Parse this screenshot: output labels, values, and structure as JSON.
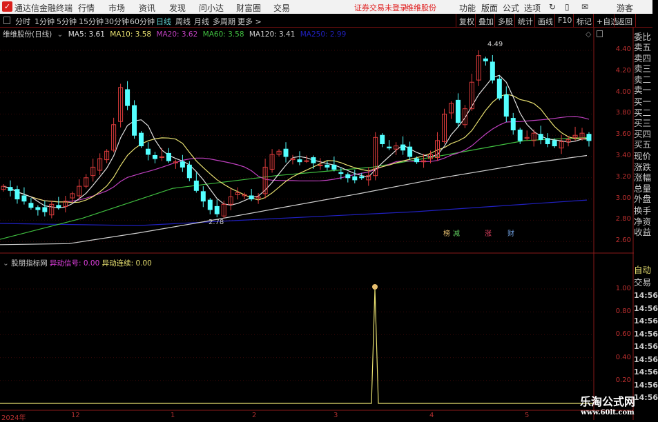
{
  "app": {
    "title": "通达信金融终端",
    "menu": [
      "行情",
      "市场",
      "资讯",
      "发现",
      "问小达",
      "财富圈",
      "交易"
    ],
    "status": "证券交易未登录",
    "stock_name": "维维股份",
    "right_menu": [
      "功能",
      "版面",
      "公式",
      "选项"
    ],
    "user": "游客"
  },
  "toolbar": {
    "periods": [
      "分时",
      "1分钟",
      "5分钟",
      "15分钟",
      "30分钟",
      "60分钟",
      "日线",
      "周线",
      "月线",
      "多周期",
      "更多 >"
    ],
    "active": "日线",
    "actions": [
      "复权",
      "叠加",
      "多股",
      "统计",
      "画线",
      "F10",
      "标记",
      "+自选",
      "返回"
    ]
  },
  "main_panel": {
    "title": "维维股份(日线)",
    "ma": [
      {
        "label": "MA5: 3.61",
        "color": "#e0e0e0"
      },
      {
        "label": "MA10: 3.58",
        "color": "#e8e070"
      },
      {
        "label": "MA20: 3.62",
        "color": "#c040c0"
      },
      {
        "label": "MA60: 3.58",
        "color": "#40c040"
      },
      {
        "label": "MA120: 3.41",
        "color": "#d0d0d0"
      },
      {
        "label": "MA250: 2.99",
        "color": "#2020c0"
      }
    ],
    "y_ticks": [
      "4.40",
      "4.20",
      "4.00",
      "3.80",
      "3.60",
      "3.40",
      "3.20",
      "3.00",
      "2.80",
      "2.60"
    ],
    "high_label": "4.49",
    "low_label": "2.78",
    "markers": [
      {
        "text": "榜",
        "color": "#e8c070"
      },
      {
        "text": "减",
        "color": "#60d060"
      },
      {
        "text": "涨",
        "color": "#e04060"
      },
      {
        "text": "财",
        "color": "#70a0e0"
      }
    ],
    "closes": [
      3.12,
      3.08,
      3.0,
      2.98,
      2.92,
      2.9,
      2.88,
      2.95,
      2.92,
      2.98,
      3.05,
      3.12,
      3.2,
      3.3,
      3.38,
      3.45,
      3.7,
      4.05,
      3.88,
      3.6,
      3.5,
      3.42,
      3.38,
      3.4,
      3.36,
      3.35,
      3.3,
      3.2,
      3.08,
      2.98,
      2.9,
      2.86,
      2.95,
      3.02,
      3.06,
      3.04,
      3.0,
      3.02,
      3.3,
      3.42,
      3.45,
      3.4,
      3.38,
      3.35,
      3.36,
      3.34,
      3.32,
      3.3,
      3.28,
      3.24,
      3.2,
      3.18,
      3.2,
      3.22,
      3.58,
      3.52,
      3.48,
      3.5,
      3.46,
      3.4,
      3.35,
      3.36,
      3.42,
      3.55,
      3.8,
      3.9,
      3.72,
      3.85,
      4.1,
      4.35,
      4.3,
      4.12,
      3.95,
      3.78,
      3.65,
      3.55,
      3.58,
      3.62,
      3.56,
      3.52,
      3.5,
      3.54,
      3.56,
      3.6,
      3.62,
      3.55
    ],
    "ma60": [
      [
        0,
        2.62
      ],
      [
        120,
        2.82
      ],
      [
        250,
        3.1
      ],
      [
        400,
        3.22
      ],
      [
        540,
        3.3
      ],
      [
        650,
        3.42
      ],
      [
        760,
        3.55
      ],
      [
        850,
        3.58
      ]
    ],
    "ma120": [
      [
        0,
        2.57
      ],
      [
        100,
        2.58
      ],
      [
        200,
        2.68
      ],
      [
        290,
        2.78
      ],
      [
        520,
        3.05
      ],
      [
        640,
        3.2
      ],
      [
        760,
        3.33
      ],
      [
        850,
        3.41
      ]
    ],
    "ma250": [
      [
        0,
        2.77
      ],
      [
        200,
        2.75
      ],
      [
        350,
        2.8
      ],
      [
        600,
        2.88
      ],
      [
        850,
        2.99
      ]
    ]
  },
  "indicator_panel": {
    "title": "股朋指标网",
    "signal_label": "异动信号: 0.00",
    "signal_color": "#e040e0",
    "streak_label": "异动连续: 0.00",
    "streak_color": "#e8e070",
    "y_ticks": [
      "1.00",
      "0.80",
      "0.60",
      "0.40",
      "0.20"
    ],
    "spike_value": 1.0
  },
  "time_axis": [
    "2024年",
    "12",
    "1",
    "2",
    "3",
    "4",
    "5"
  ],
  "right_panel": {
    "quote": [
      "委比",
      "卖五",
      "卖四",
      "卖三",
      "卖二",
      "卖一",
      "买一",
      "买二",
      "买三",
      "买四",
      "买五",
      "现价",
      "涨跌",
      "涨幅",
      "总量",
      "外盘",
      "换手",
      "净资",
      "收益"
    ],
    "auto": "自动",
    "trade": "交易",
    "ticks": [
      "14:56",
      "14:56",
      "14:56",
      "14:56",
      "14:56",
      "14:56",
      "14:56",
      "14:56",
      "14:56"
    ]
  },
  "watermark": {
    "name": "乐淘公式网",
    "url": "www.60lt.com"
  }
}
